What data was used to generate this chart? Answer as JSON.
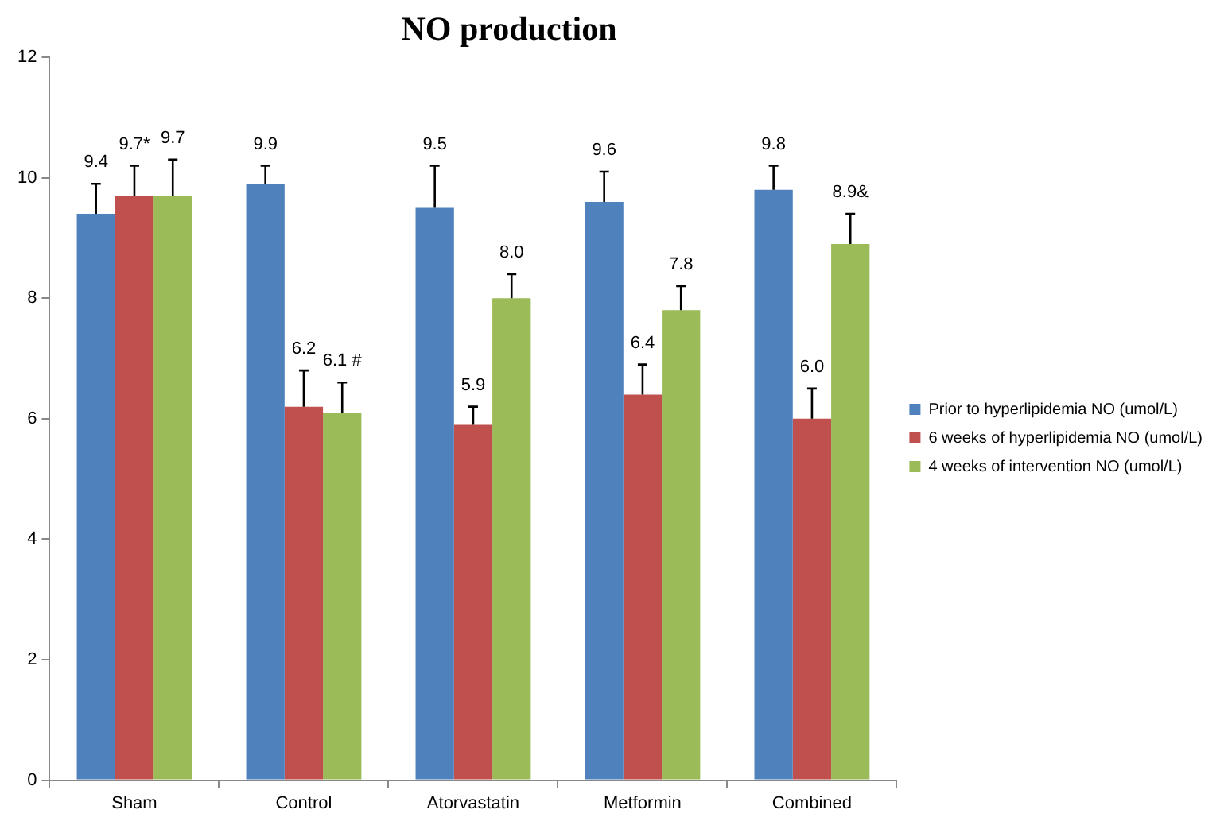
{
  "chart_data": {
    "type": "bar",
    "title": "NO production",
    "categories": [
      "Sham",
      "Control",
      "Atorvastatin",
      "Metformin",
      "Combined"
    ],
    "series": [
      {
        "name": "Prior to hyperlipidemia NO (umol/L)",
        "color": "#4f81bd",
        "values": [
          9.4,
          9.9,
          9.5,
          9.6,
          9.8
        ],
        "errors": [
          [
            9.4,
            9.9
          ],
          [
            9.9,
            10.2
          ],
          [
            9.5,
            10.2
          ],
          [
            9.6,
            10.1
          ],
          [
            9.8,
            10.2
          ]
        ],
        "value_labels": [
          "9.4",
          "9.9",
          "9.5",
          "9.6",
          "9.8"
        ]
      },
      {
        "name": "6 weeks of hyperlipidemia NO (umol/L)",
        "color": "#c0504d",
        "values": [
          9.7,
          6.2,
          5.9,
          6.4,
          6.0
        ],
        "errors": [
          [
            9.7,
            10.2
          ],
          [
            6.2,
            6.8
          ],
          [
            5.9,
            6.2
          ],
          [
            6.4,
            6.9
          ],
          [
            6.0,
            6.5
          ]
        ],
        "value_labels": [
          "9.7*",
          "6.2",
          "5.9",
          "6.4",
          "6.0"
        ]
      },
      {
        "name": "4 weeks of intervention NO (umol/L)",
        "color": "#9bbb59",
        "values": [
          9.7,
          6.1,
          8.0,
          7.8,
          8.9
        ],
        "errors": [
          [
            9.7,
            10.3
          ],
          [
            6.1,
            6.6
          ],
          [
            8.0,
            8.4
          ],
          [
            7.8,
            8.2
          ],
          [
            8.9,
            9.4
          ]
        ],
        "value_labels": [
          "9.7",
          "6.1 #",
          "8.0",
          "7.8",
          "8.9&"
        ]
      }
    ],
    "ylim": [
      0,
      12
    ],
    "yticks": [
      0,
      2,
      4,
      6,
      8,
      10,
      12
    ],
    "grid": false,
    "legend": "right"
  }
}
